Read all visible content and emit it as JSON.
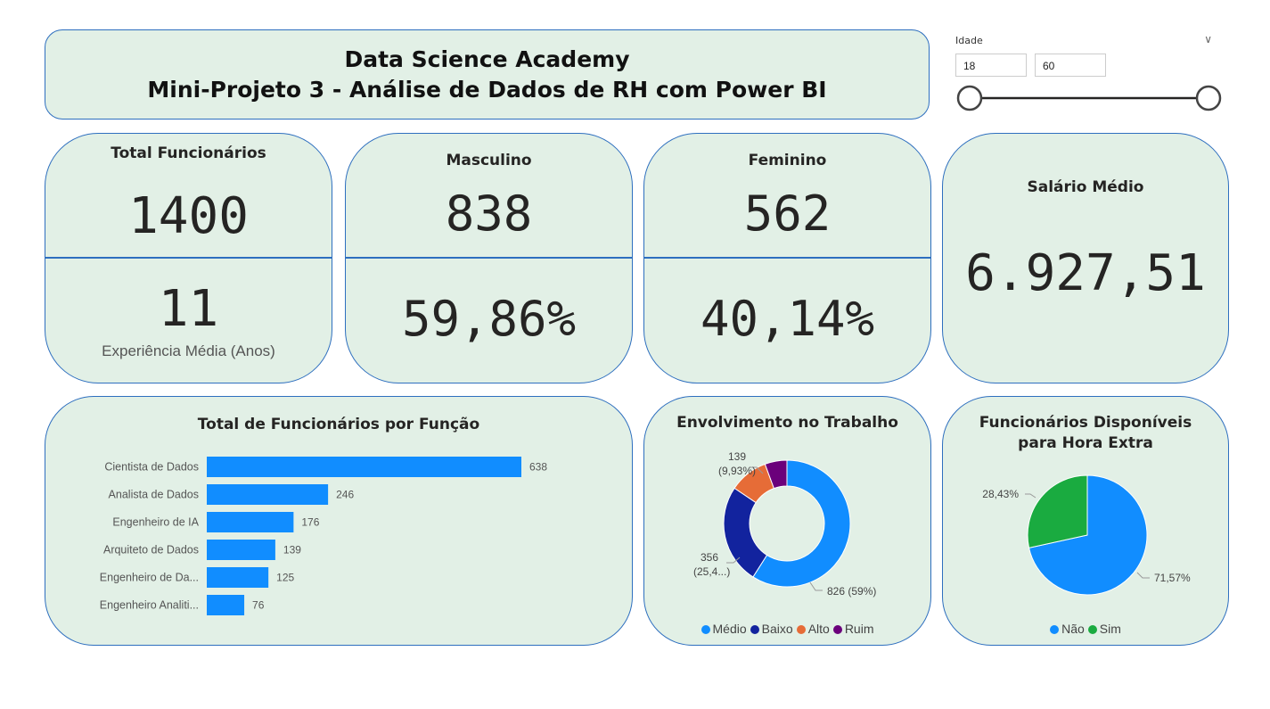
{
  "header": {
    "title_line1": "Data Science Academy",
    "title_line2": "Mini-Projeto 3 - Análise de Dados de RH com Power BI"
  },
  "slicer": {
    "label": "Idade",
    "min_value": "18",
    "max_value": "60",
    "chevron_icon": "chevron-down-icon",
    "range_min": 18,
    "range_max": 60
  },
  "kpis": {
    "total": {
      "label": "Total Funcionários",
      "value": "1400",
      "sub_value": "11",
      "sub_label": "Experiência Média (Anos)"
    },
    "masculino": {
      "label": "Masculino",
      "value": "838",
      "percent": "59,86%"
    },
    "feminino": {
      "label": "Feminino",
      "value": "562",
      "percent": "40,14%"
    },
    "salario": {
      "label": "Salário Médio",
      "value": "6.927,51"
    }
  },
  "colors": {
    "card_bg": "#e2f0e6",
    "card_border": "#2e6fbf",
    "bar": "#118dff",
    "medio": "#118dff",
    "baixo": "#12239e",
    "alto": "#e66c37",
    "ruim": "#6b007b",
    "nao": "#118dff",
    "sim": "#1aab40"
  },
  "chart_data": [
    {
      "type": "bar",
      "orientation": "horizontal",
      "title": "Total de Funcionários por Função",
      "categories": [
        "Cientista de Dados",
        "Analista de Dados",
        "Engenheiro de IA",
        "Arquiteto de Dados",
        "Engenheiro de Da...",
        "Engenheiro Analiti..."
      ],
      "values": [
        638,
        246,
        176,
        139,
        125,
        76
      ],
      "data_labels": [
        "638",
        "246",
        "176",
        "139",
        "125",
        "76"
      ]
    },
    {
      "type": "pie",
      "donut": true,
      "title": "Envolvimento no Trabalho",
      "labels": [
        "Médio",
        "Baixo",
        "Alto",
        "Ruim"
      ],
      "values": [
        826,
        356,
        139,
        79
      ],
      "data_labels": [
        [
          "826 (59%)"
        ],
        [
          "356",
          "(25,4...)"
        ],
        [
          "139",
          "(9,93%)"
        ],
        []
      ],
      "legend_position": "bottom"
    },
    {
      "type": "pie",
      "donut": false,
      "title": "Funcionários Disponíveis para Hora Extra",
      "labels": [
        "Não",
        "Sim"
      ],
      "values": [
        71.57,
        28.43
      ],
      "data_labels": [
        "71,57%",
        "28,43%"
      ],
      "legend_position": "bottom"
    }
  ]
}
